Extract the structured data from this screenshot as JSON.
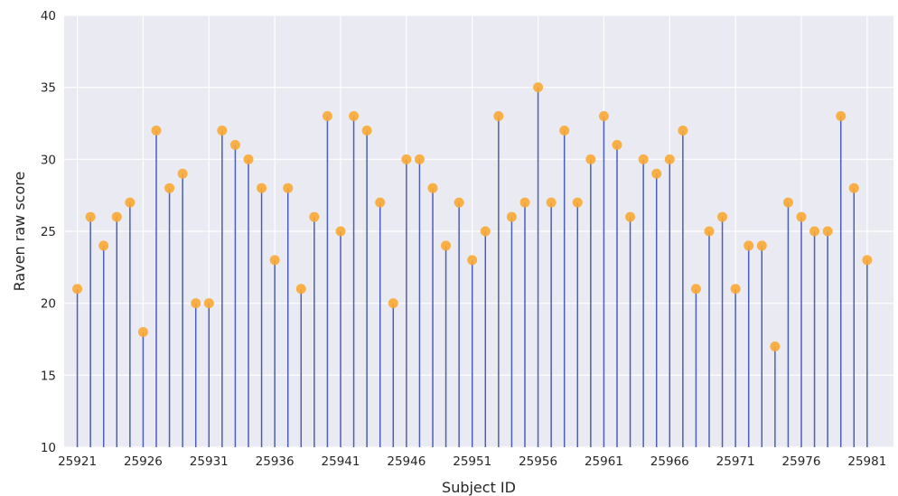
{
  "chart_data": {
    "type": "stem",
    "xlabel": "Subject ID",
    "ylabel": "Raven raw score",
    "ylim": [
      10,
      40
    ],
    "yticks": [
      10,
      15,
      20,
      25,
      30,
      35,
      40
    ],
    "xlim": [
      25920,
      25983
    ],
    "xticks": [
      25921,
      25926,
      25931,
      25936,
      25941,
      25946,
      25951,
      25956,
      25961,
      25966,
      25971,
      25976,
      25981
    ],
    "grid": true,
    "colors": {
      "plot_bg": "#eaeaf2",
      "stem": "#4c5fb5",
      "marker": "#f9a833",
      "grid": "#ffffff"
    },
    "x": [
      25921,
      25922,
      25923,
      25924,
      25925,
      25926,
      25927,
      25928,
      25929,
      25930,
      25931,
      25932,
      25933,
      25934,
      25935,
      25936,
      25937,
      25938,
      25939,
      25940,
      25941,
      25942,
      25943,
      25944,
      25945,
      25946,
      25947,
      25948,
      25949,
      25950,
      25951,
      25952,
      25953,
      25954,
      25955,
      25956,
      25957,
      25958,
      25959,
      25960,
      25961,
      25962,
      25963,
      25964,
      25965,
      25966,
      25967,
      25968,
      25969,
      25970,
      25971,
      25972,
      25973,
      25974,
      25975,
      25976,
      25977,
      25978,
      25979,
      25980,
      25981
    ],
    "values": [
      21,
      26,
      24,
      26,
      27,
      18,
      32,
      28,
      29,
      20,
      20,
      32,
      31,
      30,
      28,
      23,
      28,
      21,
      26,
      33,
      25,
      33,
      32,
      27,
      20,
      30,
      30,
      28,
      24,
      27,
      23,
      25,
      33,
      26,
      27,
      35,
      27,
      32,
      27,
      30,
      33,
      31,
      26,
      30,
      29,
      30,
      32,
      21,
      25,
      26,
      21,
      24,
      24,
      17,
      27,
      26,
      25,
      25,
      33,
      28,
      23
    ]
  }
}
